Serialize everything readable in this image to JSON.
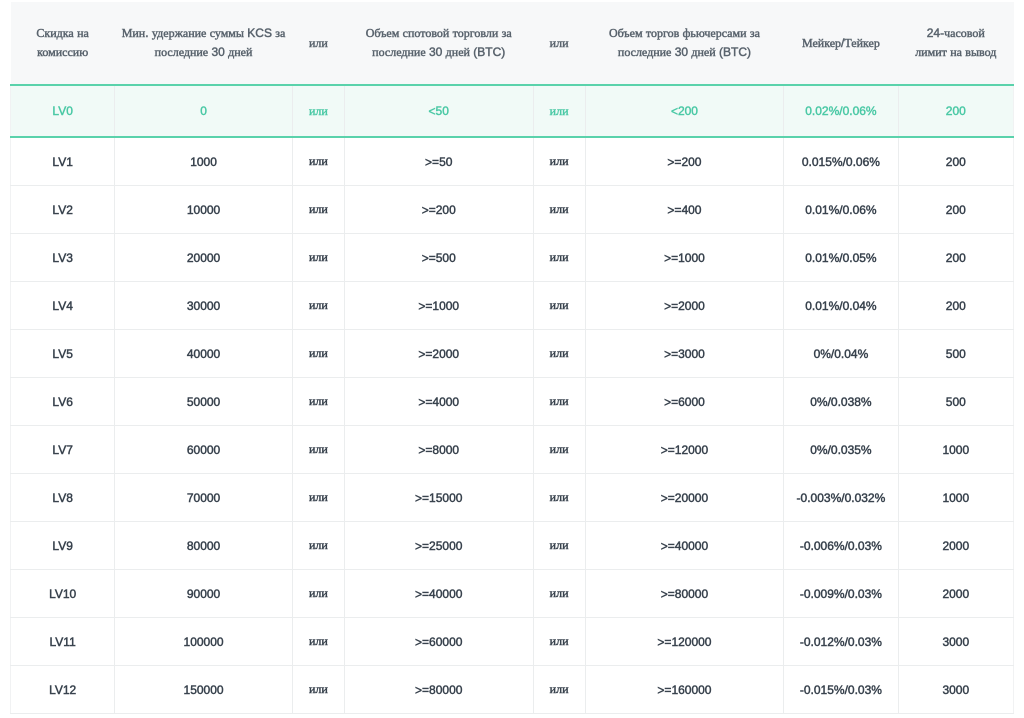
{
  "colors": {
    "accent_green": "#4cc9a6",
    "highlight_bg": "#f1faf7",
    "highlight_border": "#5ad2ab",
    "header_text": "#5a646e",
    "body_text": "#39434e",
    "header_bg": "#f7f8f9",
    "grid_line": "#ebedee"
  },
  "table": {
    "columns": [
      {
        "key": "level",
        "label": "Скидка на комиссию"
      },
      {
        "key": "kcs_holding",
        "label": "Мин. удержание суммы KCS за последние 30 дней"
      },
      {
        "key": "or_1",
        "label": "или"
      },
      {
        "key": "spot_volume",
        "label": "Объем спотовой торговли за последние 30 дней (BTC)"
      },
      {
        "key": "or_2",
        "label": "или"
      },
      {
        "key": "futures_volume",
        "label": "Объем торгов фьючерсами за последние 30 дней (BTC)"
      },
      {
        "key": "maker_taker",
        "label": "Мейкер/Тейкер"
      },
      {
        "key": "withdrawal_limit",
        "label": "24-часовой лимит на вывод"
      }
    ],
    "rows": [
      {
        "level": "LV0",
        "kcs_holding": "0",
        "or_1": "или",
        "spot_volume": "<50",
        "or_2": "или",
        "futures_volume": "<200",
        "maker_taker": "0.02%/0.06%",
        "withdrawal_limit": "200",
        "highlighted": true
      },
      {
        "level": "LV1",
        "kcs_holding": "1000",
        "or_1": "или",
        "spot_volume": ">=50",
        "or_2": "или",
        "futures_volume": ">=200",
        "maker_taker": "0.015%/0.06%",
        "withdrawal_limit": "200",
        "highlighted": false
      },
      {
        "level": "LV2",
        "kcs_holding": "10000",
        "or_1": "или",
        "spot_volume": ">=200",
        "or_2": "или",
        "futures_volume": ">=400",
        "maker_taker": "0.01%/0.06%",
        "withdrawal_limit": "200",
        "highlighted": false
      },
      {
        "level": "LV3",
        "kcs_holding": "20000",
        "or_1": "или",
        "spot_volume": ">=500",
        "or_2": "или",
        "futures_volume": ">=1000",
        "maker_taker": "0.01%/0.05%",
        "withdrawal_limit": "200",
        "highlighted": false
      },
      {
        "level": "LV4",
        "kcs_holding": "30000",
        "or_1": "или",
        "spot_volume": ">=1000",
        "or_2": "или",
        "futures_volume": ">=2000",
        "maker_taker": "0.01%/0.04%",
        "withdrawal_limit": "200",
        "highlighted": false
      },
      {
        "level": "LV5",
        "kcs_holding": "40000",
        "or_1": "или",
        "spot_volume": ">=2000",
        "or_2": "или",
        "futures_volume": ">=3000",
        "maker_taker": "0%/0.04%",
        "withdrawal_limit": "500",
        "highlighted": false
      },
      {
        "level": "LV6",
        "kcs_holding": "50000",
        "or_1": "или",
        "spot_volume": ">=4000",
        "or_2": "или",
        "futures_volume": ">=6000",
        "maker_taker": "0%/0.038%",
        "withdrawal_limit": "500",
        "highlighted": false
      },
      {
        "level": "LV7",
        "kcs_holding": "60000",
        "or_1": "или",
        "spot_volume": ">=8000",
        "or_2": "или",
        "futures_volume": ">=12000",
        "maker_taker": "0%/0.035%",
        "withdrawal_limit": "1000",
        "highlighted": false
      },
      {
        "level": "LV8",
        "kcs_holding": "70000",
        "or_1": "или",
        "spot_volume": ">=15000",
        "or_2": "или",
        "futures_volume": ">=20000",
        "maker_taker": "-0.003%/0.032%",
        "withdrawal_limit": "1000",
        "highlighted": false
      },
      {
        "level": "LV9",
        "kcs_holding": "80000",
        "or_1": "или",
        "spot_volume": ">=25000",
        "or_2": "или",
        "futures_volume": ">=40000",
        "maker_taker": "-0.006%/0.03%",
        "withdrawal_limit": "2000",
        "highlighted": false
      },
      {
        "level": "LV10",
        "kcs_holding": "90000",
        "or_1": "или",
        "spot_volume": ">=40000",
        "or_2": "или",
        "futures_volume": ">=80000",
        "maker_taker": "-0.009%/0.03%",
        "withdrawal_limit": "2000",
        "highlighted": false
      },
      {
        "level": "LV11",
        "kcs_holding": "100000",
        "or_1": "или",
        "spot_volume": ">=60000",
        "or_2": "или",
        "futures_volume": ">=120000",
        "maker_taker": "-0.012%/0.03%",
        "withdrawal_limit": "3000",
        "highlighted": false
      },
      {
        "level": "LV12",
        "kcs_holding": "150000",
        "or_1": "или",
        "spot_volume": ">=80000",
        "or_2": "или",
        "futures_volume": ">=160000",
        "maker_taker": "-0.015%/0.03%",
        "withdrawal_limit": "3000",
        "highlighted": false
      }
    ]
  }
}
